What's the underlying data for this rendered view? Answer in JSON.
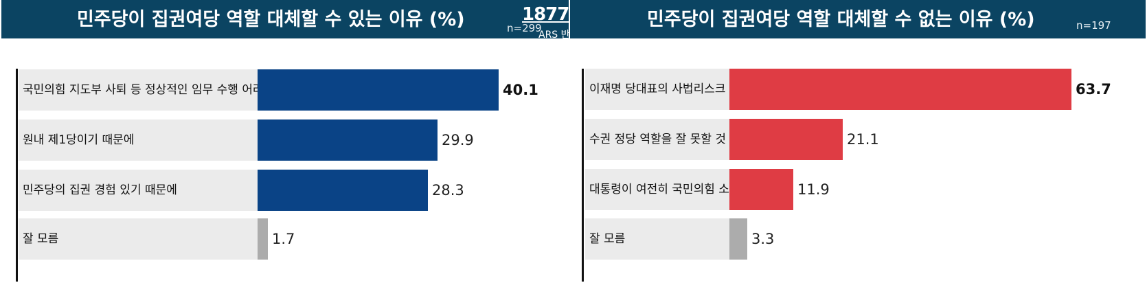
{
  "colors": {
    "header_bg": "#0b4462",
    "left_bar": "#0a4386",
    "right_bar": "#df3c44",
    "unknown_bar": "#acacac",
    "row_bg": "#ebebeb"
  },
  "overlay": {
    "phone": "1877-",
    "ars": "ARS 반"
  },
  "chart_data": [
    {
      "type": "bar",
      "orientation": "horizontal",
      "title": "민주당이 집권여당 역할 대체할 수 있는 이유 (%)",
      "sample": "n=299",
      "categories": [
        "국민의힘 지도부 사퇴 등 정상적인 임무 수행 어려워서",
        "원내 제1당이기 때문에",
        "민주당의 집권 경험 있기 때문에",
        "잘 모름"
      ],
      "values": [
        40.1,
        29.9,
        28.3,
        1.7
      ],
      "value_labels": [
        "40.1",
        "29.9",
        "28.3",
        "1.7"
      ],
      "xlim": [
        0,
        40.1
      ],
      "grid": false,
      "legend": "none"
    },
    {
      "type": "bar",
      "orientation": "horizontal",
      "title": "민주당이 집권여당 역할 대체할 수 없는 이유 (%)",
      "sample": "n=197",
      "categories": [
        "이재명 당대표의 사법리스크 때문에",
        "수권 정당 역할을 잘 못할 것 같아서",
        "대통령이 여전히 국민의힘 소속이라서",
        "잘 모름"
      ],
      "values": [
        63.7,
        21.1,
        11.9,
        3.3
      ],
      "value_labels": [
        "63.7",
        "21.1",
        "11.9",
        "3.3"
      ],
      "xlim": [
        0,
        63.7
      ],
      "grid": false,
      "legend": "none"
    }
  ]
}
